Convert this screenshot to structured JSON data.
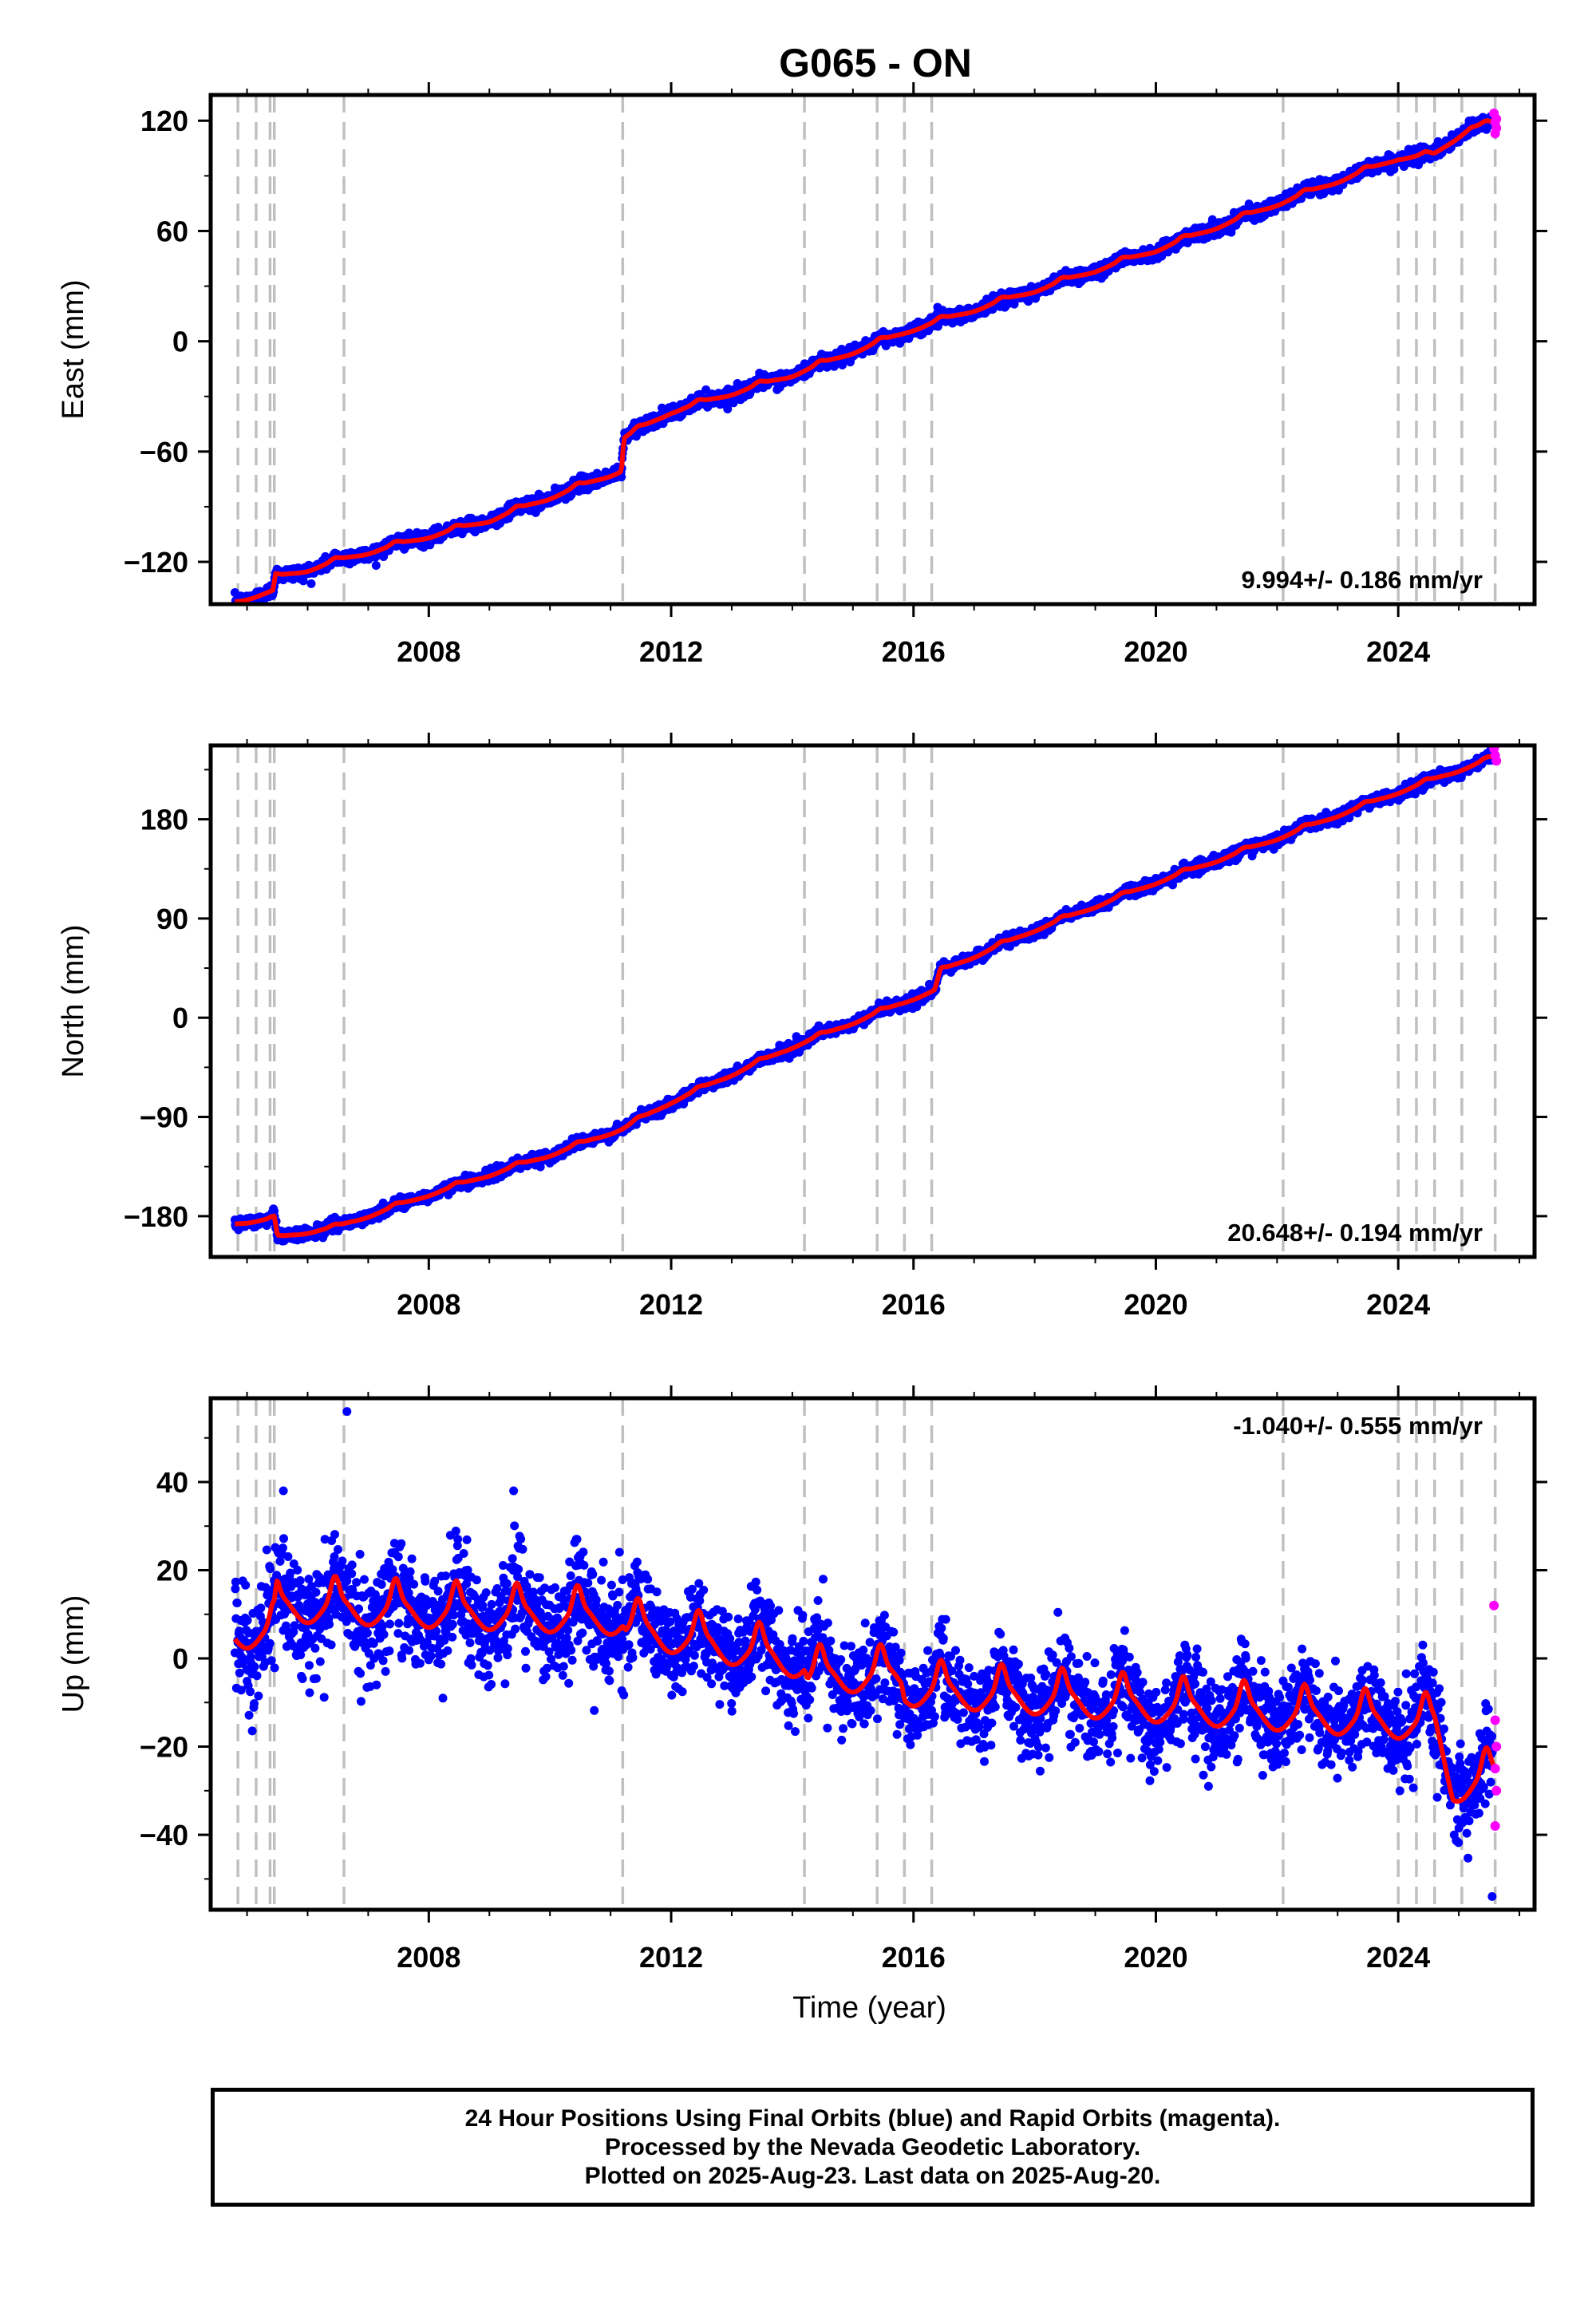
{
  "title": "G065 - ON",
  "colors": {
    "final": "#0000ff",
    "rapid": "#ff00ff",
    "model": "#ff0000",
    "events": "#c0c0c0"
  },
  "footer": {
    "line1": "24 Hour Positions Using Final Orbits (blue) and Rapid Orbits (magenta).",
    "line2": "Processed by the Nevada Geodetic Laboratory.",
    "line3": "Plotted on 2025-Aug-23. Last data on 2025-Aug-20."
  },
  "chart_data": [
    {
      "type": "scatter",
      "name": "east",
      "ylabel": "East (mm)",
      "xlabel": "",
      "xlim": [
        2004.4,
        2026.25
      ],
      "ylim": [
        -143,
        134
      ],
      "yticks": [
        120,
        60,
        0,
        -60,
        -120
      ],
      "xticks": [
        2008,
        2012,
        2016,
        2020,
        2024
      ],
      "annotation": "9.994+/- 0.186 mm/yr",
      "events": [
        2004.85,
        2005.15,
        2005.38,
        2005.45,
        2006.6,
        2011.2,
        2014.2,
        2015.4,
        2015.85,
        2016.3,
        2022.1,
        2024.0,
        2024.3,
        2024.6,
        2025.05,
        2025.6
      ],
      "model": [
        [
          2004.8,
          -141
        ],
        [
          2005.3,
          -137
        ],
        [
          2005.43,
          -137
        ],
        [
          2005.47,
          -128
        ],
        [
          2006.0,
          -124
        ],
        [
          2006.6,
          -118
        ],
        [
          2009.0,
          -97
        ],
        [
          2011.18,
          -70
        ],
        [
          2011.22,
          -52
        ],
        [
          2012.0,
          -38
        ],
        [
          2014.0,
          -18
        ],
        [
          2016.0,
          7
        ],
        [
          2018.0,
          28
        ],
        [
          2020.0,
          50
        ],
        [
          2022.0,
          75
        ],
        [
          2024.0,
          100
        ],
        [
          2024.6,
          102
        ],
        [
          2025.2,
          117
        ],
        [
          2025.6,
          119
        ]
      ],
      "noise": 1.8,
      "seasonal": 1.5,
      "rapid": [
        [
          2025.58,
          124
        ],
        [
          2025.6,
          119
        ],
        [
          2025.62,
          116
        ],
        [
          2025.6,
          113
        ],
        [
          2025.62,
          121
        ]
      ]
    },
    {
      "type": "scatter",
      "name": "north",
      "ylabel": "North (mm)",
      "xlabel": "",
      "xlim": [
        2004.4,
        2026.25
      ],
      "ylim": [
        -217,
        247
      ],
      "yticks": [
        180,
        90,
        0,
        -90,
        -180
      ],
      "xticks": [
        2008,
        2012,
        2016,
        2020,
        2024
      ],
      "annotation": "20.648+/- 0.194 mm/yr",
      "events": [
        2004.85,
        2005.15,
        2005.38,
        2005.45,
        2006.6,
        2011.2,
        2014.2,
        2015.4,
        2015.85,
        2016.3,
        2022.1,
        2024.0,
        2024.3,
        2024.6,
        2025.05,
        2025.6
      ],
      "model": [
        [
          2004.8,
          -186
        ],
        [
          2005.4,
          -182
        ],
        [
          2005.45,
          -182
        ],
        [
          2005.5,
          -199
        ],
        [
          2006.5,
          -189
        ],
        [
          2008.0,
          -160
        ],
        [
          2010.0,
          -124
        ],
        [
          2011.2,
          -100
        ],
        [
          2012.0,
          -76
        ],
        [
          2014.0,
          -26
        ],
        [
          2016.0,
          18
        ],
        [
          2016.35,
          25
        ],
        [
          2016.45,
          43
        ],
        [
          2018.0,
          80
        ],
        [
          2020.0,
          123
        ],
        [
          2022.0,
          163
        ],
        [
          2024.0,
          205
        ],
        [
          2025.6,
          237
        ]
      ],
      "noise": 2.5,
      "seasonal": 2,
      "rapid": [
        [
          2025.58,
          244
        ],
        [
          2025.6,
          238
        ],
        [
          2025.62,
          233
        ],
        [
          2025.6,
          247
        ]
      ]
    },
    {
      "type": "scatter",
      "name": "up",
      "ylabel": "Up (mm)",
      "xlabel": "Time (year)",
      "xlim": [
        2004.4,
        2026.25
      ],
      "ylim": [
        -57,
        59
      ],
      "yticks": [
        40,
        20,
        0,
        -20,
        -40
      ],
      "xticks": [
        2008,
        2012,
        2016,
        2020,
        2024
      ],
      "annotation": "-1.040+/- 0.555 mm/yr",
      "events": [
        2004.85,
        2005.15,
        2005.38,
        2005.45,
        2006.6,
        2011.2,
        2014.2,
        2015.4,
        2015.85,
        2016.3,
        2022.1,
        2024.0,
        2024.3,
        2024.6,
        2025.05,
        2025.6
      ],
      "model": [
        [
          2004.8,
          7
        ],
        [
          2005.45,
          7
        ],
        [
          2005.5,
          13
        ],
        [
          2011.2,
          10
        ],
        [
          2011.25,
          8
        ],
        [
          2014.2,
          0
        ],
        [
          2014.25,
          -3
        ],
        [
          2015.8,
          -3
        ],
        [
          2015.85,
          -6
        ],
        [
          2024.6,
          -14
        ],
        [
          2024.9,
          -28
        ],
        [
          2025.6,
          -26
        ]
      ],
      "noise": 5,
      "seasonal": 5.5,
      "rapid": [
        [
          2025.58,
          12
        ],
        [
          2025.6,
          -14
        ],
        [
          2025.62,
          -20
        ],
        [
          2025.6,
          -25
        ],
        [
          2025.62,
          -30
        ],
        [
          2025.6,
          -38
        ]
      ],
      "outliers": [
        [
          2006.65,
          56
        ],
        [
          2025.55,
          -54
        ],
        [
          2009.4,
          38
        ],
        [
          2005.6,
          38
        ]
      ]
    }
  ]
}
